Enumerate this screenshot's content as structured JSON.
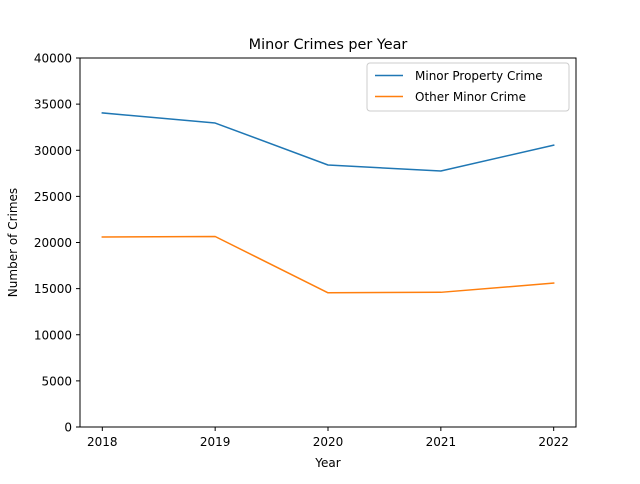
{
  "chart_data": {
    "type": "line",
    "title": "Minor Crimes per Year",
    "xlabel": "Year",
    "ylabel": "Number of Crimes",
    "x": [
      "2018",
      "2019",
      "2020",
      "2021",
      "2022"
    ],
    "ylim": [
      0,
      40000
    ],
    "yticks": [
      "0",
      "5000",
      "10000",
      "15000",
      "20000",
      "25000",
      "30000",
      "35000",
      "40000"
    ],
    "grid": false,
    "legend_position": "top-right",
    "series": [
      {
        "name": "Minor Property Crime",
        "color": "#1f77b4",
        "values": [
          34050,
          32950,
          28400,
          27750,
          30550
        ]
      },
      {
        "name": "Other Minor Crime",
        "color": "#ff7f0e",
        "values": [
          20600,
          20650,
          14550,
          14600,
          15600
        ]
      }
    ]
  }
}
